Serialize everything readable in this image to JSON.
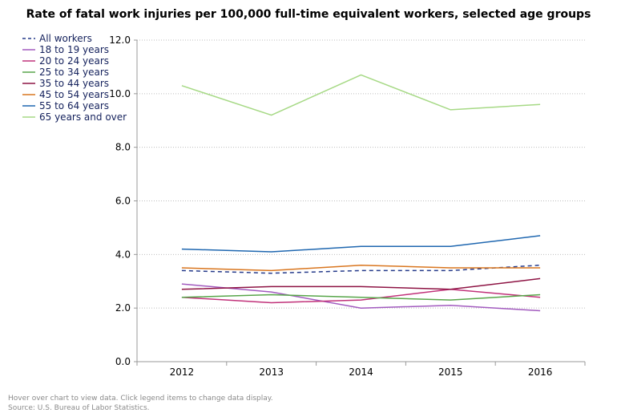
{
  "chart_data": {
    "type": "line",
    "title": "Rate of fatal work injuries per 100,000 full-time equivalent workers, selected age groups",
    "xlabel": "",
    "ylabel": "",
    "categories": [
      "2012",
      "2013",
      "2014",
      "2015",
      "2016"
    ],
    "ylim": [
      0,
      12
    ],
    "yticks": [
      "0.0",
      "2.0",
      "4.0",
      "6.0",
      "8.0",
      "10.0",
      "12.0"
    ],
    "grid": true,
    "legend_position": "top-left",
    "series": [
      {
        "name": "All workers",
        "values": [
          3.4,
          3.3,
          3.4,
          3.4,
          3.6
        ],
        "color": "#253a8a",
        "dashed": true
      },
      {
        "name": "18 to 19 years",
        "values": [
          2.9,
          2.6,
          2.0,
          2.1,
          1.9
        ],
        "color": "#a25bbf",
        "dashed": false
      },
      {
        "name": "20 to 24 years",
        "values": [
          2.4,
          2.2,
          2.3,
          2.7,
          2.4
        ],
        "color": "#c1327a",
        "dashed": false
      },
      {
        "name": "25 to 34 years",
        "values": [
          2.4,
          2.5,
          2.4,
          2.3,
          2.5
        ],
        "color": "#58a64a",
        "dashed": false
      },
      {
        "name": "35 to 44 years",
        "values": [
          2.7,
          2.8,
          2.8,
          2.7,
          3.1
        ],
        "color": "#8e1444",
        "dashed": false
      },
      {
        "name": "45 to 54 years",
        "values": [
          3.5,
          3.4,
          3.6,
          3.5,
          3.5
        ],
        "color": "#d9761f",
        "dashed": false
      },
      {
        "name": "55 to 64 years",
        "values": [
          4.2,
          4.1,
          4.3,
          4.3,
          4.7
        ],
        "color": "#1f67b0",
        "dashed": false
      },
      {
        "name": "65 years and over",
        "values": [
          10.3,
          9.2,
          10.7,
          9.4,
          9.6
        ],
        "color": "#a6d985",
        "dashed": false
      }
    ]
  },
  "footer": {
    "hint": "Hover over chart to view data. Click legend items to change data display.",
    "source": "Source: U.S. Bureau of Labor Statistics."
  }
}
